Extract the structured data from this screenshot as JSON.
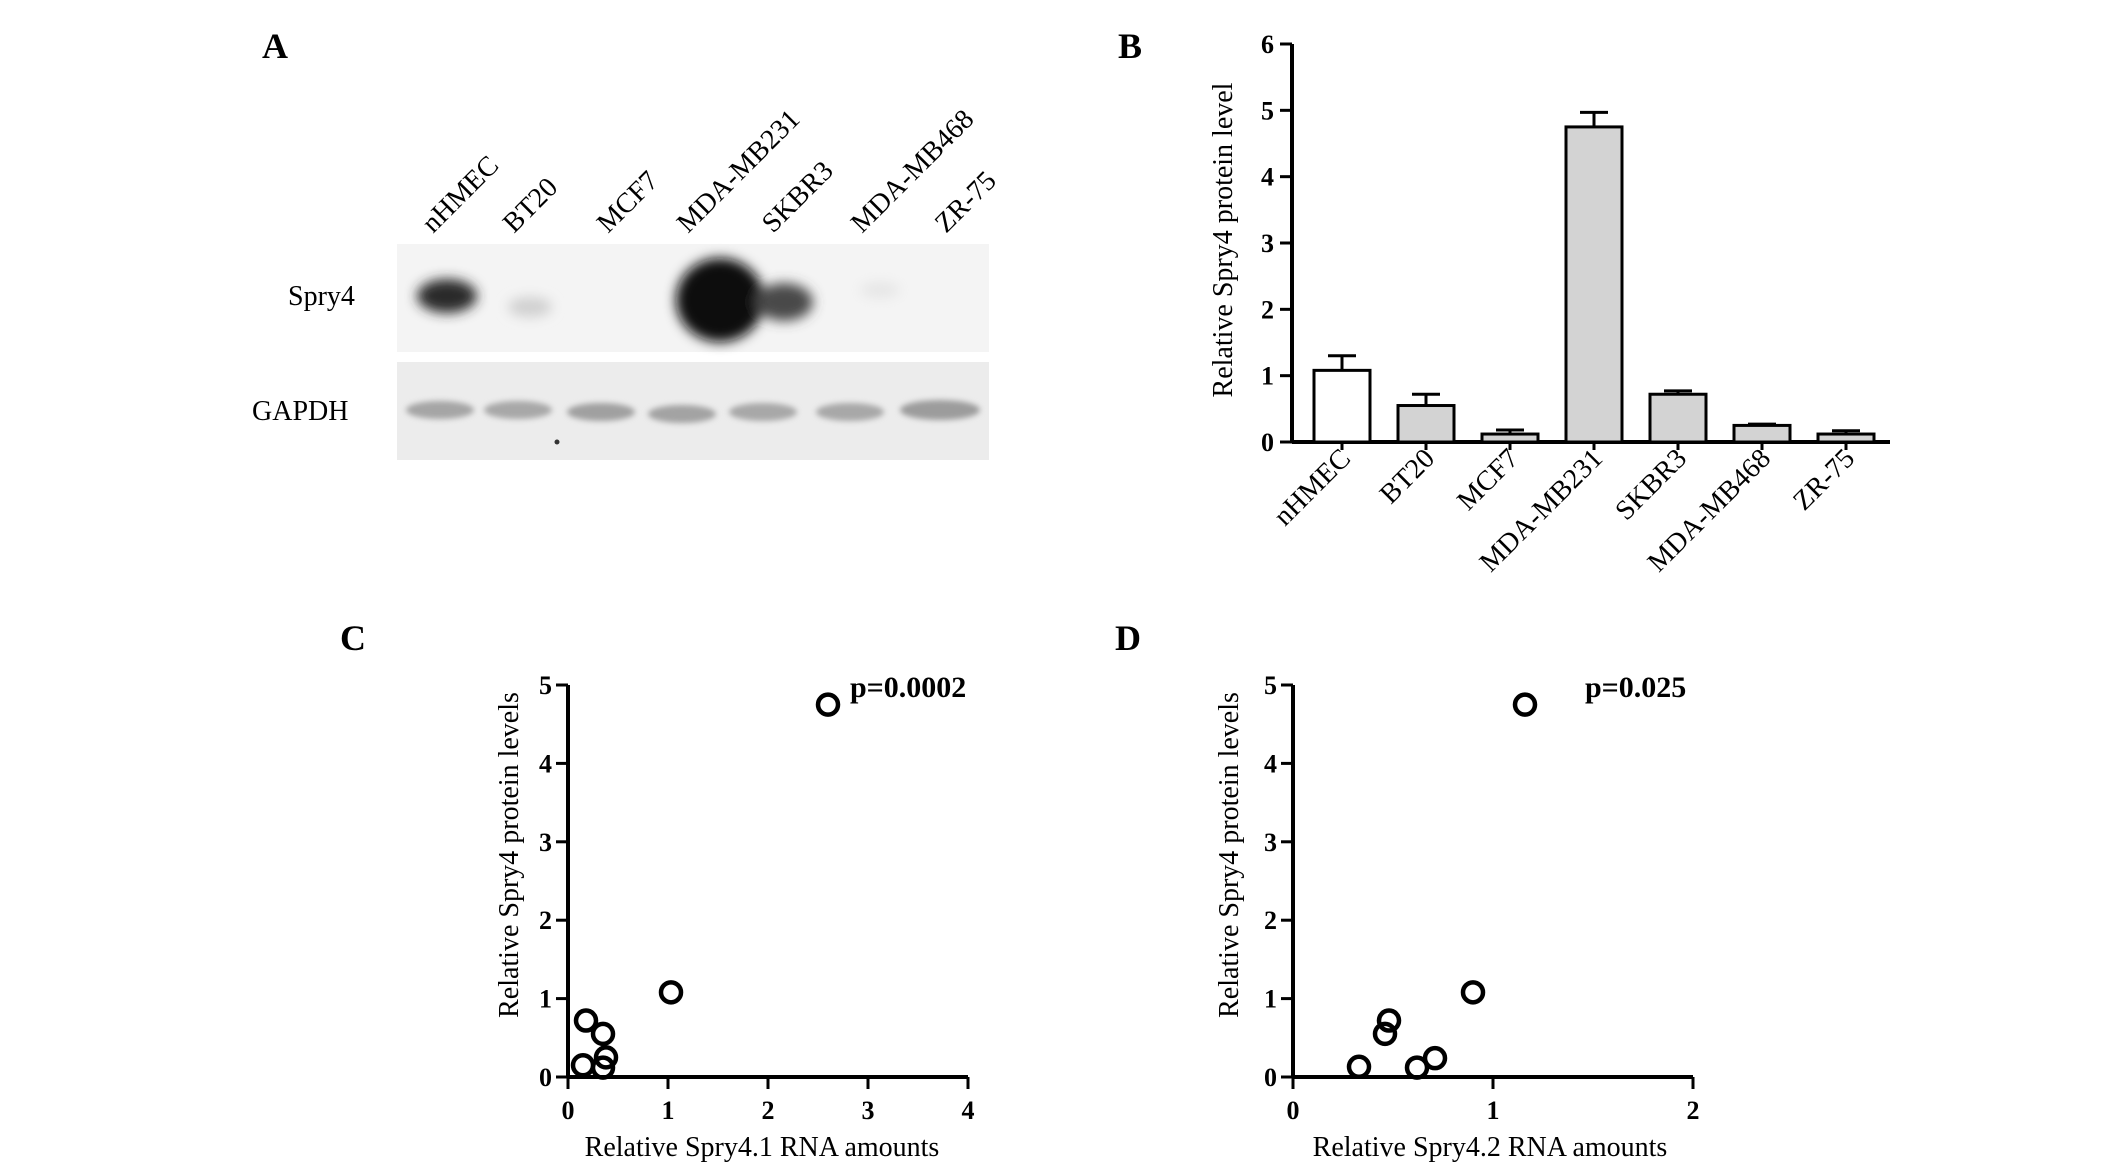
{
  "figure": {
    "panel_a": {
      "letter": "A",
      "lanes": [
        "nHMEC",
        "BT20",
        "MCF7",
        "MDA-MB231",
        "SKBR3",
        "MDA-MB468",
        "ZR-75"
      ],
      "rows": [
        "Spry4",
        "GAPDH"
      ]
    },
    "panel_b": {
      "letter": "B"
    },
    "panel_c": {
      "letter": "C",
      "pvalue": "p=0.0002"
    },
    "panel_d": {
      "letter": "D",
      "pvalue": "p=0.025"
    }
  },
  "chart_data": [
    {
      "type": "bar",
      "categories": [
        "nHMEC",
        "BT20",
        "MCF7",
        "MDA-MB231",
        "SKBR3",
        "MDA-MB468",
        "ZR-75"
      ],
      "values": [
        1.08,
        0.55,
        0.12,
        4.75,
        0.72,
        0.25,
        0.12
      ],
      "errors": [
        0.22,
        0.17,
        0.06,
        0.22,
        0.05,
        0.02,
        0.05
      ],
      "colors": [
        "#ffffff",
        "#d3d3d3",
        "#d3d3d3",
        "#d3d3d3",
        "#d3d3d3",
        "#d3d3d3",
        "#d3d3d3"
      ],
      "ylabel": "Relative Spry4 protein level",
      "xlabel": "",
      "ylim": [
        0,
        6
      ],
      "yticks": [
        "0",
        "1",
        "2",
        "3",
        "4",
        "5",
        "6"
      ]
    },
    {
      "type": "scatter",
      "x": [
        0.15,
        0.18,
        0.35,
        0.35,
        0.38,
        1.03,
        2.6
      ],
      "y": [
        0.15,
        0.72,
        0.55,
        0.12,
        0.25,
        1.08,
        4.75
      ],
      "xlabel": "Relative Spry4.1 RNA amounts",
      "ylabel": "Relative Spry4 protein levels",
      "xlim": [
        0,
        4
      ],
      "ylim": [
        0,
        5
      ],
      "xticks": [
        "0",
        "1",
        "2",
        "3",
        "4"
      ],
      "yticks": [
        "0",
        "1",
        "2",
        "3",
        "4",
        "5"
      ],
      "annotation": "p=0.0002"
    },
    {
      "type": "scatter",
      "x": [
        0.33,
        0.46,
        0.48,
        0.62,
        0.71,
        0.9,
        1.16
      ],
      "y": [
        0.13,
        0.55,
        0.72,
        0.12,
        0.24,
        1.08,
        4.75
      ],
      "xlabel": "Relative Spry4.2 RNA amounts",
      "ylabel": "Relative Spry4 protein levels",
      "xlim": [
        0,
        2
      ],
      "ylim": [
        0,
        5
      ],
      "xticks": [
        "0",
        "1",
        "2"
      ],
      "yticks": [
        "0",
        "1",
        "2",
        "3",
        "4",
        "5"
      ],
      "annotation": "p=0.025"
    }
  ]
}
